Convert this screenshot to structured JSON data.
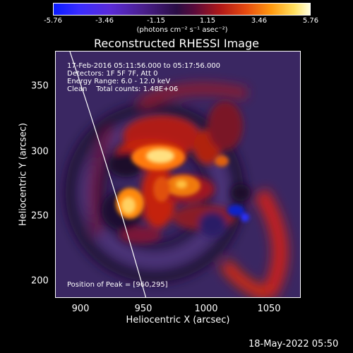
{
  "colorbar": {
    "ticks": [
      "-5.76",
      "-3.46",
      "-1.15",
      "1.15",
      "3.46",
      "5.76"
    ],
    "units": "(photons cm⁻² s⁻¹ asec⁻²)"
  },
  "title": "Reconstructed RHESSI Image",
  "annotations": {
    "time": "17-Feb-2016 05:11:56.000 to 05:17:56.000",
    "detectors": "Detectors: 1F 5F 7F, Att 0",
    "energy": "Energy Range: 6.0 - 12.0 keV",
    "clean": "Clean    Total counts: 1.48E+06",
    "peak": "Position of Peak = [960,295]"
  },
  "axes": {
    "xlabel": "Heliocentric X (arcsec)",
    "ylabel": "Heliocentric Y (arcsec)",
    "xticks": [
      "900",
      "950",
      "1000",
      "1050"
    ],
    "yticks": [
      "350",
      "300",
      "250",
      "200"
    ]
  },
  "timestamp": "18-May-2022 05:50"
}
